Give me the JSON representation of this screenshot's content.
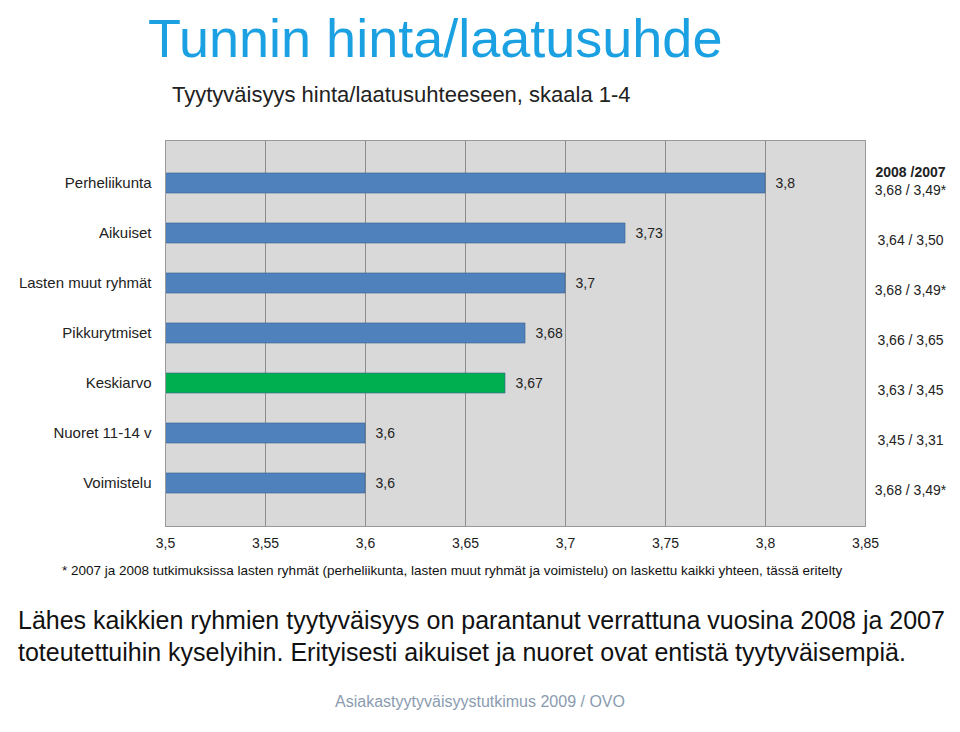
{
  "chart_data": {
    "type": "bar",
    "orientation": "horizontal",
    "title": "Tunnin hinta/laatusuhde",
    "subtitle": "Tyytyväisyys hinta/laatusuhteeseen, skaala 1-4",
    "categories": [
      "Perheliikunta",
      "Aikuiset",
      "Lasten muut ryhmät",
      "Pikkurytmiset",
      "Keskiarvo",
      "Nuoret 11-14 v",
      "Voimistelu"
    ],
    "values": [
      3.8,
      3.73,
      3.7,
      3.68,
      3.67,
      3.6,
      3.6
    ],
    "value_labels": [
      "3,8",
      "3,73",
      "3,7",
      "3,68",
      "3,67",
      "3,6",
      "3,6"
    ],
    "colors": [
      "#4f81bd",
      "#4f81bd",
      "#4f81bd",
      "#4f81bd",
      "#00b050",
      "#4f81bd",
      "#4f81bd"
    ],
    "data_labels": true,
    "xlim": [
      3.5,
      3.85
    ],
    "xticks": [
      {
        "value": 3.5,
        "label": "3,5"
      },
      {
        "value": 3.55,
        "label": "3,55"
      },
      {
        "value": 3.6,
        "label": "3,6"
      },
      {
        "value": 3.65,
        "label": "3,65"
      },
      {
        "value": 3.7,
        "label": "3,7"
      },
      {
        "value": 3.75,
        "label": "3,75"
      },
      {
        "value": 3.8,
        "label": "3,8"
      },
      {
        "value": 3.85,
        "label": "3,85"
      }
    ],
    "grid": true,
    "comparison": {
      "title": "2008 /2007",
      "labels": [
        "3,68 / 3,49*",
        "3,64 / 3,50",
        "3,68 / 3,49*",
        "3,66 / 3,65",
        "3,63 / 3,45",
        "3,45 / 3,31",
        "3,68 / 3,49*"
      ]
    },
    "footnote": "* 2007 ja 2008 tutkimuksissa lasten ryhmät  (perheliikunta, lasten muut ryhmät ja voimistelu) on laskettu kaikki yhteen, tässä eritelty",
    "caption": [
      "Lähes kaikkien ryhmien tyytyväisyys on parantanut verrattuna vuosina 2008 ja 2007",
      "toteutettuihin kyselyihin. Erityisesti aikuiset ja nuoret ovat entistä tyytyväisempiä."
    ],
    "source": "Asiakastyytyväisyystutkimus 2009 / OVO"
  }
}
